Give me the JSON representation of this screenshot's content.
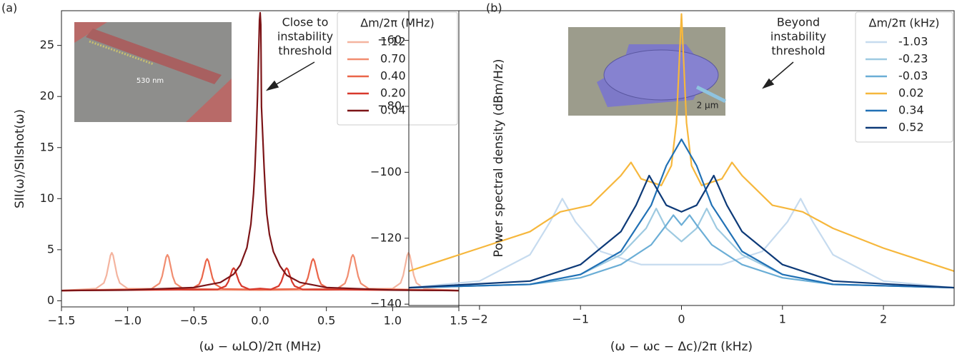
{
  "chart_data": [
    {
      "type": "line",
      "panel_label": "(a)",
      "x_label": "(ω − ωLO)/2π (MHz)",
      "y_label": "SII(ω)/SIIshot(ω)",
      "legend_title": "Δm/2π (MHz)",
      "legend": "upper right",
      "annotation_lines": [
        "Close to",
        "instability",
        "threshold"
      ],
      "inset_label": "530 nm",
      "xlim": [
        -1.5,
        1.5
      ],
      "ylim": [
        -0.6,
        28.4
      ],
      "xticks": [
        {
          "value": -1.5,
          "label": "−1.5"
        },
        {
          "value": -1.0,
          "label": "−1.0"
        },
        {
          "value": -0.5,
          "label": "−0.5"
        },
        {
          "value": 0,
          "label": "0.0"
        },
        {
          "value": 0.5,
          "label": "0.5"
        },
        {
          "value": 1.0,
          "label": "1.0"
        },
        {
          "value": 1.5,
          "label": "1.5"
        }
      ],
      "yticks": [
        0,
        5,
        10,
        15,
        20,
        25
      ],
      "series": [
        {
          "name": "1.12",
          "color": "#f4b49f",
          "x": [
            -1.5,
            -1.24,
            -1.18,
            -1.16,
            -1.14,
            -1.13,
            -1.12,
            -1.11,
            -1.1,
            -1.08,
            -1.06,
            -1.0,
            -0.5,
            0,
            0.5,
            1.0,
            1.06,
            1.08,
            1.1,
            1.11,
            1.12,
            1.13,
            1.14,
            1.16,
            1.18,
            1.24,
            1.5
          ],
          "values": [
            1.0,
            1.19,
            1.74,
            2.48,
            3.78,
            4.44,
            4.7,
            4.44,
            3.78,
            2.48,
            1.74,
            1.19,
            1.05,
            1.05,
            1.05,
            1.19,
            1.74,
            2.48,
            3.78,
            4.44,
            4.7,
            4.44,
            3.78,
            2.48,
            1.74,
            1.19,
            1.0
          ]
        },
        {
          "name": "0.70",
          "color": "#f18d70",
          "x": [
            -1.5,
            -0.82,
            -0.76,
            -0.74,
            -0.72,
            -0.71,
            -0.7,
            -0.69,
            -0.68,
            -0.66,
            -0.64,
            -0.58,
            0,
            0.58,
            0.64,
            0.66,
            0.68,
            0.69,
            0.7,
            0.71,
            0.72,
            0.74,
            0.76,
            0.82,
            1.5
          ],
          "values": [
            1.0,
            1.18,
            1.7,
            2.4,
            3.63,
            4.26,
            4.5,
            4.26,
            3.63,
            2.4,
            1.7,
            1.18,
            1.05,
            1.18,
            1.7,
            2.4,
            3.63,
            4.26,
            4.5,
            4.26,
            3.63,
            2.4,
            1.7,
            1.18,
            1.0
          ]
        },
        {
          "name": "0.40",
          "color": "#ea6549",
          "x": [
            -1.5,
            -0.52,
            -0.46,
            -0.44,
            -0.42,
            -0.41,
            -0.4,
            -0.39,
            -0.38,
            -0.36,
            -0.34,
            -0.28,
            0,
            0.28,
            0.34,
            0.36,
            0.38,
            0.39,
            0.4,
            0.41,
            0.42,
            0.44,
            0.46,
            0.52,
            1.5
          ],
          "values": [
            1.0,
            1.16,
            1.62,
            2.24,
            3.33,
            3.88,
            4.1,
            3.88,
            3.33,
            2.24,
            1.62,
            1.16,
            1.1,
            1.16,
            1.62,
            2.24,
            3.33,
            3.88,
            4.1,
            3.88,
            3.33,
            2.24,
            1.62,
            1.16,
            1.0
          ]
        },
        {
          "name": "0.20",
          "color": "#d7392c",
          "x": [
            -1.5,
            -0.32,
            -0.26,
            -0.24,
            -0.22,
            -0.21,
            -0.2,
            -0.19,
            -0.18,
            -0.16,
            -0.14,
            -0.08,
            0,
            0.08,
            0.14,
            0.16,
            0.18,
            0.19,
            0.2,
            0.21,
            0.22,
            0.24,
            0.26,
            0.32,
            1.5
          ],
          "values": [
            1.0,
            1.11,
            1.44,
            1.88,
            2.65,
            3.05,
            3.2,
            3.05,
            2.65,
            1.88,
            1.44,
            1.11,
            1.2,
            1.11,
            1.44,
            1.88,
            2.65,
            3.05,
            3.2,
            3.05,
            2.65,
            1.88,
            1.44,
            1.11,
            1.0
          ]
        },
        {
          "name": "0.04",
          "color": "#7c1417",
          "x": [
            -1.5,
            -1.0,
            -0.5,
            -0.3,
            -0.2,
            -0.15,
            -0.1,
            -0.07,
            -0.05,
            -0.04,
            -0.03,
            -0.02,
            -0.01,
            -0.005,
            0,
            0.005,
            0.01,
            0.02,
            0.03,
            0.04,
            0.05,
            0.07,
            0.1,
            0.15,
            0.2,
            0.3,
            0.5,
            1.0,
            1.5
          ],
          "values": [
            1.0,
            1.05,
            1.3,
            1.8,
            2.6,
            3.5,
            5.2,
            7.5,
            10.5,
            12.8,
            16,
            20,
            25,
            27.5,
            28.2,
            27,
            19,
            16,
            13,
            10.5,
            8.5,
            6.5,
            4.8,
            3.4,
            2.5,
            1.8,
            1.3,
            1.05,
            1.0
          ]
        }
      ]
    },
    {
      "type": "line",
      "panel_label": "(b)",
      "x_label": "(ω − ωc − Δc)/2π (kHz)",
      "y_label": "Power spectral density (dBm/Hz)",
      "legend_title": "Δm/2π (kHz)",
      "legend": "upper right",
      "annotation_lines": [
        "Beyond",
        "instability",
        "threshold"
      ],
      "inset_label": "2 μm",
      "xlim": [
        -2.7,
        2.7
      ],
      "ylim": [
        -140.4,
        -51
      ],
      "xticks": [
        {
          "value": -2,
          "label": "−2"
        },
        {
          "value": -1,
          "label": "−1"
        },
        0,
        1,
        2
      ],
      "yticks": [
        {
          "value": -140,
          "label": "−140"
        },
        {
          "value": -120,
          "label": "−120"
        },
        {
          "value": -100,
          "label": "−100"
        },
        {
          "value": -80,
          "label": "−80"
        },
        {
          "value": -60,
          "label": "−60"
        }
      ],
      "series": [
        {
          "name": "-1.03",
          "color": "#c6dbef",
          "x": [
            -2.7,
            -2,
            -1.5,
            -1.3,
            -1.18,
            -1.05,
            -0.8,
            -0.4,
            0,
            0.4,
            0.8,
            1.05,
            1.18,
            1.3,
            1.5,
            2,
            2.7
          ],
          "values": [
            -135,
            -133,
            -125,
            -115,
            -108,
            -115,
            -124,
            -128,
            -128,
            -128,
            -124,
            -115,
            -108,
            -115,
            -125,
            -133,
            -135
          ]
        },
        {
          "name": "-0.23",
          "color": "#9ecae1",
          "x": [
            -2.7,
            -1.5,
            -1,
            -0.6,
            -0.35,
            -0.25,
            -0.15,
            0,
            0.15,
            0.25,
            0.35,
            0.6,
            1,
            1.5,
            2.7
          ],
          "values": [
            -135,
            -134,
            -131,
            -125,
            -117,
            -111,
            -117,
            -121,
            -117,
            -111,
            -117,
            -125,
            -131,
            -134,
            -135
          ]
        },
        {
          "name": "-0.03",
          "color": "#6baed6",
          "x": [
            -2.7,
            -1.5,
            -1,
            -0.6,
            -0.3,
            -0.15,
            -0.08,
            0,
            0.08,
            0.15,
            0.3,
            0.6,
            1,
            1.5,
            2.7
          ],
          "values": [
            -135,
            -134,
            -132,
            -128,
            -122,
            -116,
            -113,
            -116,
            -113,
            -116,
            -122,
            -128,
            -132,
            -134,
            -135
          ]
        },
        {
          "name": "0.02",
          "color": "#f6b73c",
          "x": [
            -2.7,
            -2,
            -1.5,
            -1.2,
            -0.9,
            -0.6,
            -0.5,
            -0.4,
            -0.2,
            -0.1,
            -0.05,
            0,
            0.05,
            0.1,
            0.2,
            0.4,
            0.5,
            0.6,
            0.9,
            1.2,
            1.5,
            2,
            2.7
          ],
          "values": [
            -130,
            -123,
            -118,
            -112,
            -110,
            -101,
            -97,
            -102,
            -104,
            -98,
            -85,
            -52,
            -85,
            -98,
            -104,
            -102,
            -97,
            -101,
            -110,
            -112,
            -117,
            -123,
            -130
          ]
        },
        {
          "name": "0.34",
          "color": "#2171b5",
          "x": [
            -2.7,
            -1.5,
            -1,
            -0.6,
            -0.3,
            -0.15,
            0,
            0.15,
            0.3,
            0.6,
            1,
            1.5,
            2.7
          ],
          "values": [
            -135,
            -134,
            -131,
            -124,
            -110,
            -98,
            -90,
            -98,
            -110,
            -124,
            -131,
            -134,
            -135
          ]
        },
        {
          "name": "0.52",
          "color": "#0d3a78",
          "x": [
            -2.7,
            -1.5,
            -1,
            -0.6,
            -0.45,
            -0.32,
            -0.15,
            0,
            0.15,
            0.32,
            0.45,
            0.6,
            1,
            1.5,
            2.7
          ],
          "values": [
            -135,
            -133,
            -128,
            -118,
            -110,
            -101,
            -110,
            -112,
            -110,
            -101,
            -110,
            -118,
            -128,
            -133,
            -135
          ]
        }
      ]
    }
  ]
}
